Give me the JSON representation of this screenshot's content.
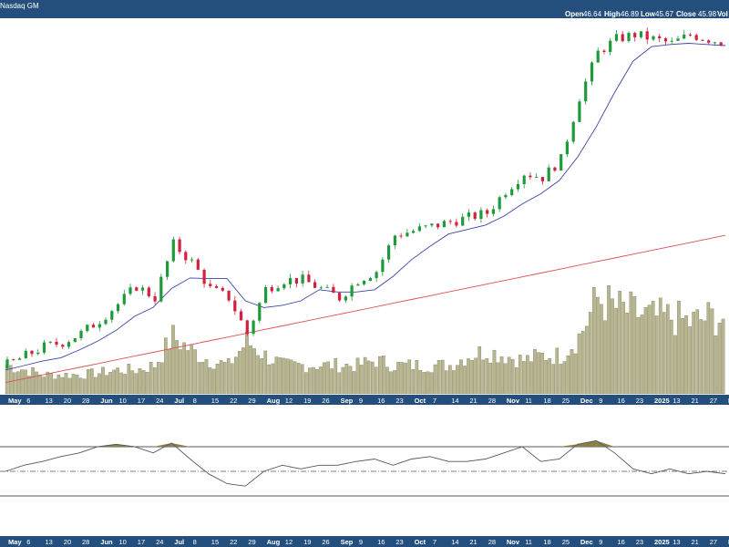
{
  "header": {
    "exchange": "Nasdaq GM",
    "open_label": "Open",
    "open_value": "46.64",
    "high_label": "High",
    "high_value": "46.89",
    "low_label": "Low",
    "low_value": "45.67",
    "close_label": "Close",
    "close_value": "45.98",
    "volume_label": "Vol"
  },
  "colors": {
    "panel_bar": "#244f7c",
    "up_candle": "#1f9a3a",
    "down_candle": "#d2213f",
    "ma_short": "#3a45a6",
    "ma_long": "#d9534f",
    "volume": "#b8b68f",
    "oscillator_line": "#4d5966",
    "oscillator_fill": "#8b7e45"
  },
  "chart_data": [
    {
      "type": "candlestick",
      "panel": "price",
      "grid": false,
      "x_tick_labels": [
        "May",
        "6",
        "13",
        "20",
        "28",
        "Jun",
        "10",
        "17",
        "24",
        "Jul",
        "8",
        "15",
        "22",
        "29",
        "Aug",
        "12",
        "19",
        "26",
        "Sep",
        "9",
        "16",
        "23",
        "Oct",
        "7",
        "14",
        "21",
        "28",
        "Nov",
        "11",
        "18",
        "25",
        "Dec",
        "9",
        "16",
        "23",
        "2025",
        "13",
        "21",
        "27",
        "Feb"
      ],
      "close_approx": [
        10,
        11,
        12,
        12.5,
        13.5,
        15,
        16.8,
        18.8,
        17.5,
        23.5,
        21.5,
        18.5,
        17.5,
        13.5,
        18.5,
        19.5,
        19.5,
        18.5,
        17.5,
        19.5,
        20.5,
        24.5,
        25,
        25.5,
        26,
        26.5,
        27,
        29.5,
        31.5,
        31,
        33,
        40,
        45,
        46.5,
        47,
        46.5,
        46,
        47,
        46.5,
        46
      ],
      "series": [
        {
          "name": "",
          "role": "50-day moving average"
        },
        {
          "name": "",
          "role": "200-day moving average"
        }
      ]
    },
    {
      "type": "bar",
      "panel": "volume",
      "relative_volume": [
        0.3,
        0.25,
        0.2,
        0.2,
        0.2,
        0.22,
        0.25,
        0.25,
        0.3,
        0.6,
        0.45,
        0.35,
        0.3,
        0.55,
        0.4,
        0.3,
        0.3,
        0.3,
        0.3,
        0.3,
        0.35,
        0.3,
        0.3,
        0.3,
        0.3,
        0.4,
        0.45,
        0.4,
        0.35,
        0.4,
        0.4,
        0.6,
        1.0,
        0.9,
        0.85,
        0.8,
        0.8,
        0.75,
        0.8,
        0.8
      ]
    },
    {
      "type": "line",
      "panel": "oscillator",
      "upper_band": 70,
      "lower_band": 30,
      "midline": 50,
      "values": [
        50,
        55,
        58,
        62,
        65,
        70,
        72,
        70,
        65,
        73,
        60,
        48,
        40,
        38,
        50,
        55,
        52,
        55,
        55,
        58,
        60,
        55,
        60,
        62,
        58,
        58,
        60,
        65,
        70,
        58,
        60,
        72,
        75,
        65,
        52,
        48,
        52,
        48,
        50,
        48
      ]
    }
  ]
}
